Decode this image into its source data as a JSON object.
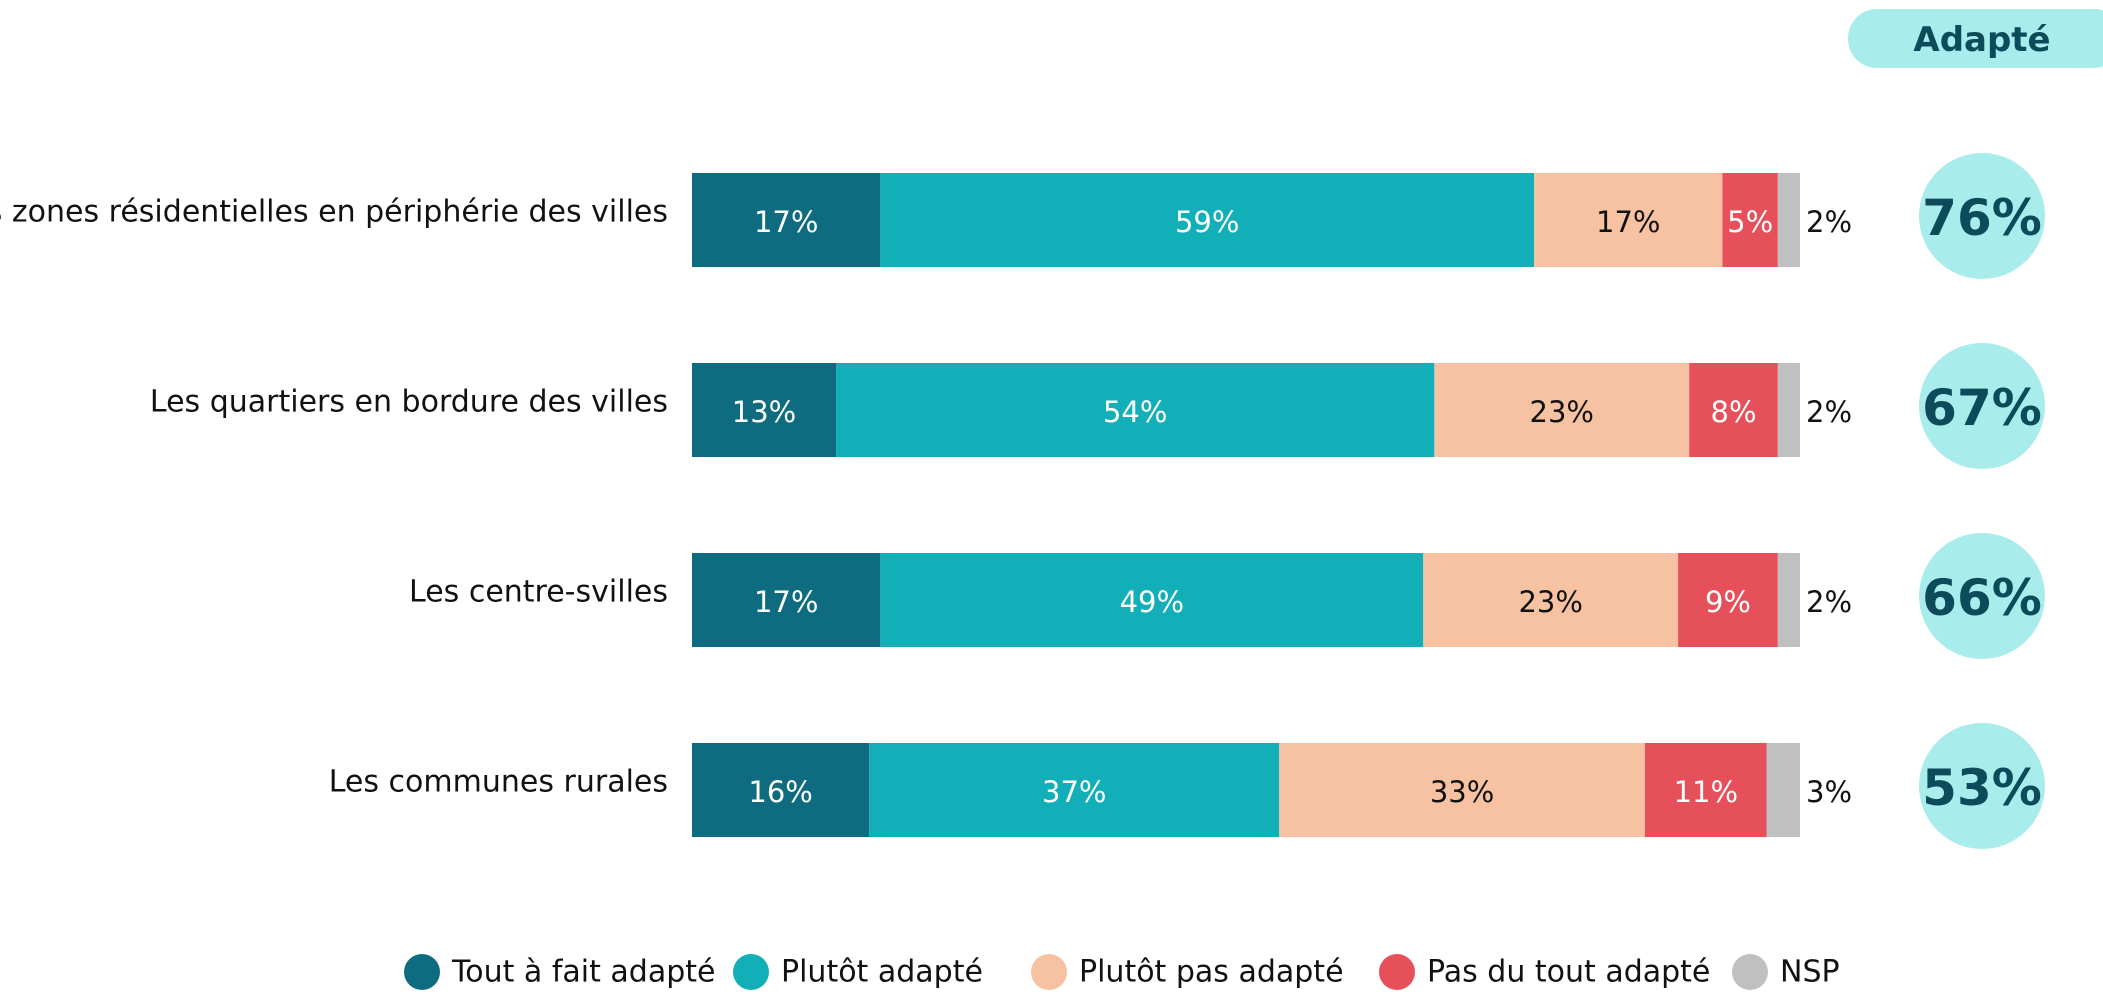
{
  "chart_data": {
    "type": "stacked-bar-horizontal",
    "categories": [
      "Les zones résidentielles en périphérie des villes",
      "Les quartiers en bordure des villes",
      "Les centre-svilles",
      "Les communes rurales"
    ],
    "xlim": [
      0,
      100
    ],
    "series": [
      {
        "name": "Tout à fait adapté",
        "color": "#0f6b80",
        "label_color": "#ffffff",
        "values": [
          17,
          13,
          17,
          16
        ],
        "value_labels": [
          "17%",
          "13%",
          "17%",
          "16%"
        ]
      },
      {
        "name": "Plutôt adapté",
        "color": "#13afb8",
        "label_color": "#ffffff",
        "values": [
          59,
          54,
          49,
          37
        ],
        "value_labels": [
          "59%",
          "54%",
          "49%",
          "37%"
        ]
      },
      {
        "name": "Plutôt pas adapté",
        "color": "#f7c2a2",
        "label_color": "#111111",
        "values": [
          17,
          23,
          23,
          33
        ],
        "value_labels": [
          "17%",
          "23%",
          "23%",
          "33%"
        ]
      },
      {
        "name": "Pas du tout adapté",
        "color": "#e5505a",
        "label_color": "#ffffff",
        "values": [
          5,
          8,
          9,
          11
        ],
        "value_labels": [
          "5%",
          "8%",
          "9%",
          "11%"
        ]
      },
      {
        "name": "NSP",
        "color": "#c0c0c0",
        "label_color": "#111111",
        "values": [
          2,
          2,
          2,
          3
        ],
        "value_labels": [
          "2%",
          "2%",
          "2%",
          "3%"
        ]
      }
    ],
    "summary": {
      "title": "Adapté",
      "color": "#a8eceb",
      "values": [
        76,
        67,
        66,
        53
      ],
      "value_labels": [
        "76%",
        "67%",
        "66%",
        "53%"
      ]
    }
  }
}
